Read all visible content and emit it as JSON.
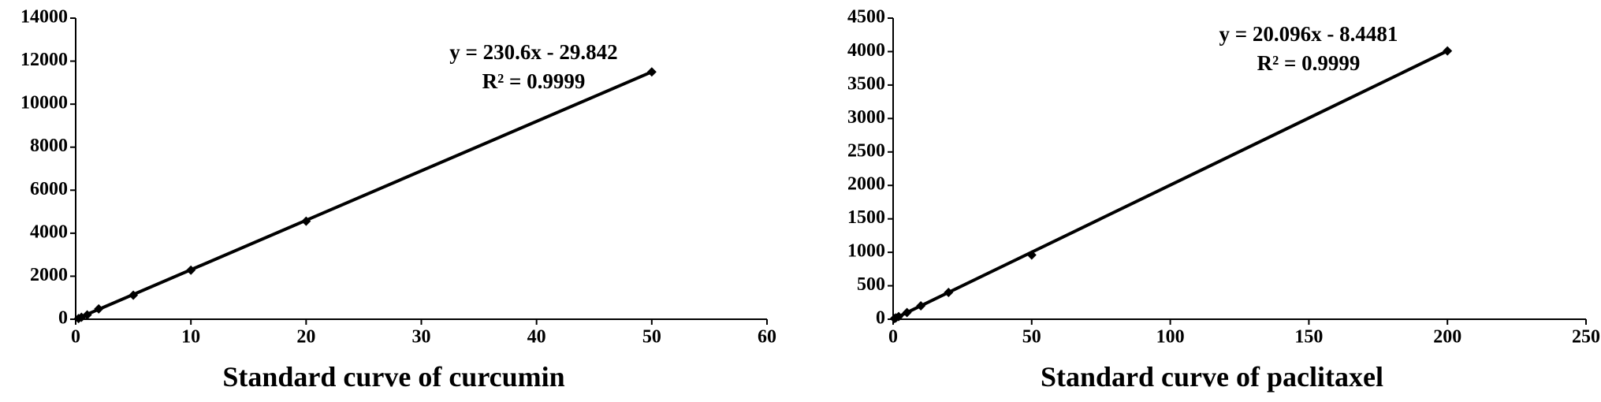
{
  "chart_data": [
    {
      "type": "scatter",
      "title": "Standard curve of curcumin",
      "annotations": [
        "y = 230.6x - 29.842",
        "R² = 0.9999"
      ],
      "x": [
        0.25,
        0.5,
        1,
        2,
        5,
        10,
        20,
        50
      ],
      "values": [
        30,
        90,
        200,
        480,
        1120,
        2280,
        4560,
        11500
      ],
      "trendline": {
        "x": [
          0,
          50
        ],
        "values": [
          0,
          11500
        ]
      },
      "color": "#000000",
      "xlim": [
        0,
        60
      ],
      "xticks": [
        0,
        10,
        20,
        30,
        40,
        50,
        60
      ],
      "ylim": [
        0,
        14000
      ],
      "yticks": [
        0,
        2000,
        4000,
        6000,
        8000,
        10000,
        12000,
        14000
      ]
    },
    {
      "type": "scatter",
      "title": "Standard curve of paclitaxel",
      "annotations": [
        "y = 20.096x - 8.4481",
        "R² = 0.9999"
      ],
      "x": [
        0.5,
        1,
        2,
        5,
        10,
        20,
        50,
        200
      ],
      "values": [
        10,
        20,
        40,
        100,
        200,
        400,
        960,
        4010
      ],
      "trendline": {
        "x": [
          0,
          200
        ],
        "values": [
          0,
          4010
        ]
      },
      "color": "#000000",
      "xlim": [
        0,
        250
      ],
      "xticks": [
        0,
        50,
        100,
        150,
        200,
        250
      ],
      "ylim": [
        0,
        4500
      ],
      "yticks": [
        0,
        500,
        1000,
        1500,
        2000,
        2500,
        3000,
        3500,
        4000,
        4500
      ]
    }
  ]
}
